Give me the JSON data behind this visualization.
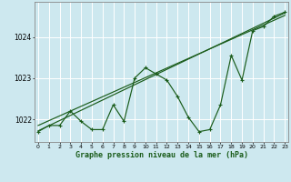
{
  "xlabel": "Graphe pression niveau de la mer (hPa)",
  "x_ticks": [
    0,
    1,
    2,
    3,
    4,
    5,
    6,
    7,
    8,
    9,
    10,
    11,
    12,
    13,
    14,
    15,
    16,
    17,
    18,
    19,
    20,
    21,
    22,
    23
  ],
  "xlim": [
    -0.3,
    23.3
  ],
  "ylim": [
    1021.45,
    1024.85
  ],
  "y_ticks": [
    1022,
    1023,
    1024
  ],
  "bg_color": "#cde8ef",
  "grid_color": "#ffffff",
  "line_color": "#1a5c1a",
  "hours": [
    0,
    1,
    2,
    3,
    4,
    5,
    6,
    7,
    8,
    9,
    10,
    11,
    12,
    13,
    14,
    15,
    16,
    17,
    18,
    19,
    20,
    21,
    22,
    23
  ],
  "pressure": [
    1021.7,
    1021.85,
    1021.85,
    1022.2,
    1021.95,
    1021.75,
    1021.75,
    1022.35,
    1021.95,
    1023.0,
    1023.25,
    1023.1,
    1022.95,
    1022.55,
    1022.05,
    1021.7,
    1021.75,
    1022.35,
    1023.55,
    1022.95,
    1024.15,
    1024.25,
    1024.5,
    1024.6
  ],
  "line1_x": [
    0,
    23
  ],
  "line1_y": [
    1021.72,
    1024.58
  ],
  "line2_x": [
    0,
    23
  ],
  "line2_y": [
    1021.85,
    1024.52
  ]
}
